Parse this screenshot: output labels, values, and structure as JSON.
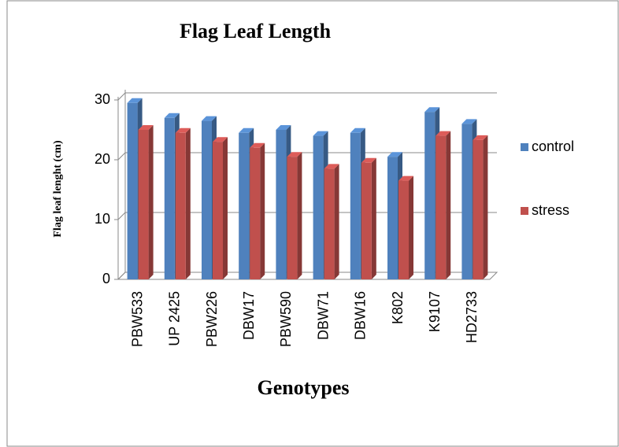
{
  "chart_data": {
    "type": "bar3d",
    "title": "Flag Leaf Length",
    "x_label": "Genotypes",
    "y_label": "Flag leaf lenght  (cm)",
    "categories": [
      "PBW533",
      "UP 2425",
      "PBW226",
      "DBW17",
      "PBW590",
      "DBW71",
      "DBW16",
      "K802",
      "K9107",
      "HD2733"
    ],
    "series": [
      {
        "name": "control",
        "color": "#4f81bd",
        "values": [
          29.5,
          27,
          26.5,
          24.5,
          25,
          24,
          24.5,
          20.5,
          28,
          26
        ]
      },
      {
        "name": "stress",
        "color": "#c0504d",
        "values": [
          25,
          24.5,
          23,
          22,
          20.5,
          18.5,
          19.5,
          16.5,
          24,
          23.3
        ]
      }
    ],
    "ylim": [
      0,
      30
    ],
    "yticks": [
      0,
      10,
      20,
      30
    ],
    "grid": true,
    "legend": "right"
  }
}
